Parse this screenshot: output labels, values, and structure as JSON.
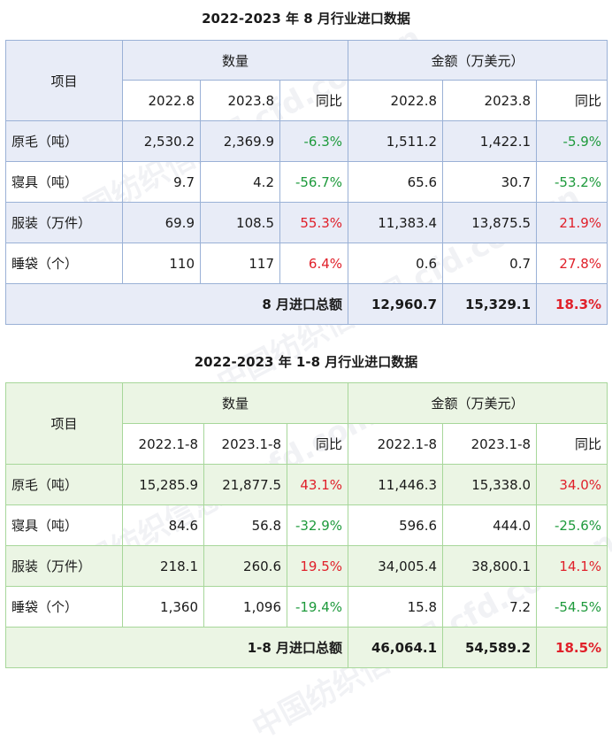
{
  "watermark": "中国纺织信息网 cfd.com.cn",
  "table1": {
    "title": "2022-2023 年 8 月行业进口数据",
    "item_header": "项目",
    "qty_header": "数量",
    "amt_header": "金额（万美元）",
    "sub": [
      "2022.8",
      "2023.8",
      "同比",
      "2022.8",
      "2023.8",
      "同比"
    ],
    "rows": [
      {
        "name": "原毛（吨）",
        "q1": "2,530.2",
        "q2": "2,369.9",
        "qyoy": "-6.3%",
        "a1": "1,511.2",
        "a2": "1,422.1",
        "ayoy": "-5.9%"
      },
      {
        "name": "寝具（吨）",
        "q1": "9.7",
        "q2": "4.2",
        "qyoy": "-56.7%",
        "a1": "65.6",
        "a2": "30.7",
        "ayoy": "-53.2%"
      },
      {
        "name": "服装（万件）",
        "q1": "69.9",
        "q2": "108.5",
        "qyoy": "55.3%",
        "a1": "11,383.4",
        "a2": "13,875.5",
        "ayoy": "21.9%"
      },
      {
        "name": "睡袋（个）",
        "q1": "110",
        "q2": "117",
        "qyoy": "6.4%",
        "a1": "0.6",
        "a2": "0.7",
        "ayoy": "27.8%"
      }
    ],
    "total": {
      "label": "8 月进口总额",
      "a1": "12,960.7",
      "a2": "15,329.1",
      "ayoy": "18.3%"
    }
  },
  "table2": {
    "title": "2022-2023 年 1-8 月行业进口数据",
    "item_header": "项目",
    "qty_header": "数量",
    "amt_header": "金额（万美元）",
    "sub": [
      "2022.1-8",
      "2023.1-8",
      "同比",
      "2022.1-8",
      "2023.1-8",
      "同比"
    ],
    "rows": [
      {
        "name": "原毛（吨）",
        "q1": "15,285.9",
        "q2": "21,877.5",
        "qyoy": "43.1%",
        "a1": "11,446.3",
        "a2": "15,338.0",
        "ayoy": "34.0%"
      },
      {
        "name": "寝具（吨）",
        "q1": "84.6",
        "q2": "56.8",
        "qyoy": "-32.9%",
        "a1": "596.6",
        "a2": "444.0",
        "ayoy": "-25.6%"
      },
      {
        "name": "服装（万件）",
        "q1": "218.1",
        "q2": "260.6",
        "qyoy": "19.5%",
        "a1": "34,005.4",
        "a2": "38,800.1",
        "ayoy": "14.1%"
      },
      {
        "name": "睡袋（个）",
        "q1": "1,360",
        "q2": "1,096",
        "qyoy": "-19.4%",
        "a1": "15.8",
        "a2": "7.2",
        "ayoy": "-54.5%"
      }
    ],
    "total": {
      "label": "1-8 月进口总额",
      "a1": "46,064.1",
      "a2": "54,589.2",
      "ayoy": "18.5%"
    }
  },
  "colors": {
    "negative": "#1e9a3c",
    "positive": "#e0202a",
    "table1_border": "#9ab1d6",
    "table1_shade": "#e8ecf7",
    "table2_border": "#a7d79a",
    "table2_shade": "#ebf5e4"
  }
}
